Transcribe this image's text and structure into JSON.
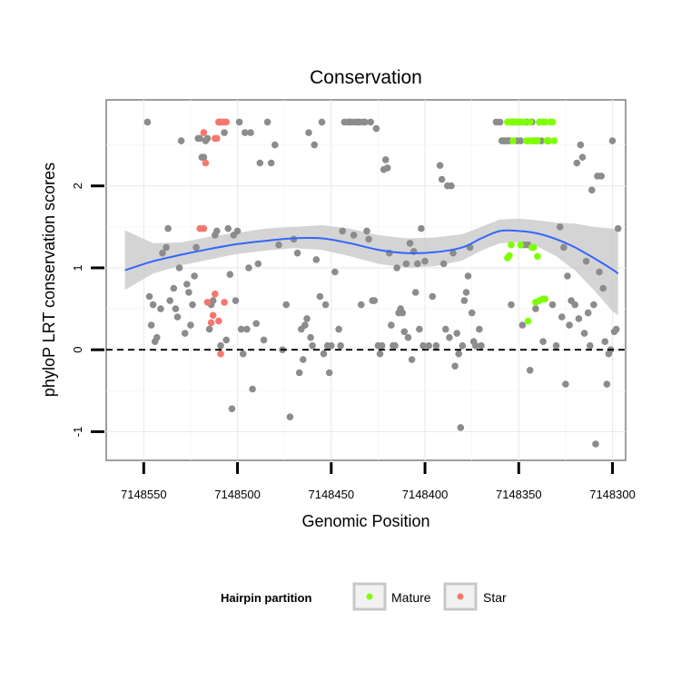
{
  "chart_data": {
    "type": "scatter",
    "title": "Conservation",
    "xlabel": "Genomic Position",
    "ylabel": "phyloP LRT conservation scores",
    "x_reversed": true,
    "xlim": [
      7148570,
      7148293
    ],
    "ylim": [
      -1.35,
      3.05
    ],
    "x_ticks": [
      7148550,
      7148500,
      7148450,
      7148400,
      7148350,
      7148300
    ],
    "x_tick_labels": [
      "7148550",
      "7148500",
      "7148450",
      "7148400",
      "7148350",
      "7148300"
    ],
    "y_ticks": [
      -1,
      0,
      1,
      2
    ],
    "y_tick_labels": [
      "-1",
      "0",
      "1",
      "2"
    ],
    "reference_line": {
      "y": 0,
      "style": "dashed"
    },
    "legend": {
      "title": "Hairpin partition",
      "position": "bottom",
      "entries": [
        {
          "label": "Mature",
          "color": "#7FFF00"
        },
        {
          "label": "Star",
          "color": "#F8766D"
        }
      ]
    },
    "colors": {
      "other": "#8c8c8c",
      "mature": "#7FFF00",
      "star": "#F8766D",
      "smooth": "#3366FF",
      "ribbon": "#cccccc"
    },
    "series": [
      {
        "name": "Other",
        "points": [
          [
            7148548,
            2.78
          ],
          [
            7148545,
            0.55
          ],
          [
            7148547,
            0.65
          ],
          [
            7148546,
            0.3
          ],
          [
            7148544,
            0.1
          ],
          [
            7148543,
            0.15
          ],
          [
            7148541,
            0.5
          ],
          [
            7148540,
            1.18
          ],
          [
            7148538,
            1.25
          ],
          [
            7148537,
            1.48
          ],
          [
            7148536,
            0.6
          ],
          [
            7148534,
            0.75
          ],
          [
            7148533,
            0.5
          ],
          [
            7148532,
            0.4
          ],
          [
            7148531,
            1.0
          ],
          [
            7148530,
            2.55
          ],
          [
            7148528,
            0.2
          ],
          [
            7148527,
            0.8
          ],
          [
            7148526,
            0.7
          ],
          [
            7148525,
            0.3
          ],
          [
            7148524,
            0.55
          ],
          [
            7148523,
            0.9
          ],
          [
            7148522,
            1.25
          ],
          [
            7148521,
            2.58
          ],
          [
            7148520,
            2.58
          ],
          [
            7148519,
            2.35
          ],
          [
            7148518,
            2.35
          ],
          [
            7148517,
            2.55
          ],
          [
            7148516,
            2.58
          ],
          [
            7148515,
            0.25
          ],
          [
            7148514,
            0.55
          ],
          [
            7148513,
            0.6
          ],
          [
            7148512,
            1.4
          ],
          [
            7148511,
            1.45
          ],
          [
            7148510,
            2.78
          ],
          [
            7148509,
            0.05
          ],
          [
            7148507,
            2.65
          ],
          [
            7148506,
            0.12
          ],
          [
            7148505,
            1.48
          ],
          [
            7148504,
            0.92
          ],
          [
            7148503,
            -0.72
          ],
          [
            7148502,
            1.4
          ],
          [
            7148501,
            0.6
          ],
          [
            7148500,
            1.45
          ],
          [
            7148499,
            2.78
          ],
          [
            7148498,
            0.25
          ],
          [
            7148497,
            -0.05
          ],
          [
            7148496,
            2.65
          ],
          [
            7148495,
            0.25
          ],
          [
            7148494,
            1.0
          ],
          [
            7148493,
            2.65
          ],
          [
            7148492,
            -0.48
          ],
          [
            7148490,
            0.32
          ],
          [
            7148489,
            1.05
          ],
          [
            7148488,
            2.28
          ],
          [
            7148486,
            0.12
          ],
          [
            7148484,
            2.78
          ],
          [
            7148482,
            2.28
          ],
          [
            7148480,
            2.5
          ],
          [
            7148478,
            1.28
          ],
          [
            7148476,
            0.0
          ],
          [
            7148474,
            0.55
          ],
          [
            7148472,
            -0.82
          ],
          [
            7148470,
            1.35
          ],
          [
            7148468,
            1.18
          ],
          [
            7148467,
            -0.28
          ],
          [
            7148466,
            0.25
          ],
          [
            7148465,
            -0.12
          ],
          [
            7148464,
            0.3
          ],
          [
            7148463,
            0.38
          ],
          [
            7148462,
            2.65
          ],
          [
            7148461,
            0.15
          ],
          [
            7148460,
            0.05
          ],
          [
            7148459,
            2.5
          ],
          [
            7148458,
            1.1
          ],
          [
            7148456,
            0.65
          ],
          [
            7148455,
            2.78
          ],
          [
            7148454,
            -0.05
          ],
          [
            7148453,
            0.55
          ],
          [
            7148452,
            0.05
          ],
          [
            7148451,
            -0.28
          ],
          [
            7148450,
            0.05
          ],
          [
            7148448,
            0.95
          ],
          [
            7148446,
            0.25
          ],
          [
            7148445,
            0.05
          ],
          [
            7148444,
            1.45
          ],
          [
            7148443,
            2.78
          ],
          [
            7148441,
            2.78
          ],
          [
            7148440,
            2.78
          ],
          [
            7148439,
            2.78
          ],
          [
            7148438,
            1.4
          ],
          [
            7148437,
            2.78
          ],
          [
            7148436,
            2.78
          ],
          [
            7148435,
            2.78
          ],
          [
            7148434,
            0.55
          ],
          [
            7148433,
            2.78
          ],
          [
            7148432,
            2.78
          ],
          [
            7148431,
            1.45
          ],
          [
            7148430,
            1.35
          ],
          [
            7148429,
            2.78
          ],
          [
            7148428,
            0.6
          ],
          [
            7148427,
            0.6
          ],
          [
            7148426,
            2.7
          ],
          [
            7148425,
            0.05
          ],
          [
            7148424,
            -0.05
          ],
          [
            7148423,
            0.05
          ],
          [
            7148422,
            2.2
          ],
          [
            7148421,
            2.32
          ],
          [
            7148420,
            2.22
          ],
          [
            7148419,
            1.18
          ],
          [
            7148418,
            0.3
          ],
          [
            7148417,
            0.05
          ],
          [
            7148416,
            0.05
          ],
          [
            7148415,
            1.0
          ],
          [
            7148414,
            0.45
          ],
          [
            7148413,
            0.5
          ],
          [
            7148412,
            0.45
          ],
          [
            7148411,
            0.22
          ],
          [
            7148410,
            1.05
          ],
          [
            7148409,
            0.15
          ],
          [
            7148408,
            1.3
          ],
          [
            7148407,
            -0.12
          ],
          [
            7148406,
            1.2
          ],
          [
            7148405,
            0.7
          ],
          [
            7148404,
            1.05
          ],
          [
            7148403,
            0.25
          ],
          [
            7148402,
            1.48
          ],
          [
            7148401,
            0.05
          ],
          [
            7148400,
            1.08
          ],
          [
            7148398,
            0.05
          ],
          [
            7148396,
            0.65
          ],
          [
            7148394,
            0.05
          ],
          [
            7148392,
            2.25
          ],
          [
            7148391,
            2.08
          ],
          [
            7148390,
            1.05
          ],
          [
            7148389,
            0.25
          ],
          [
            7148388,
            2.0
          ],
          [
            7148387,
            0.15
          ],
          [
            7148386,
            2.0
          ],
          [
            7148385,
            1.18
          ],
          [
            7148384,
            -0.2
          ],
          [
            7148383,
            0.2
          ],
          [
            7148382,
            -0.05
          ],
          [
            7148381,
            -0.95
          ],
          [
            7148380,
            0.05
          ],
          [
            7148379,
            0.6
          ],
          [
            7148378,
            0.7
          ],
          [
            7148377,
            0.9
          ],
          [
            7148376,
            1.25
          ],
          [
            7148375,
            0.45
          ],
          [
            7148374,
            0.1
          ],
          [
            7148373,
            0.05
          ],
          [
            7148371,
            0.25
          ],
          [
            7148370,
            0.05
          ],
          [
            7148362,
            2.78
          ],
          [
            7148360,
            2.78
          ],
          [
            7148359,
            2.55
          ],
          [
            7148358,
            2.55
          ],
          [
            7148357,
            2.55
          ],
          [
            7148356,
            2.55
          ],
          [
            7148355,
            2.55
          ],
          [
            7148354,
            0.55
          ],
          [
            7148353,
            2.78
          ],
          [
            7148352,
            2.78
          ],
          [
            7148351,
            2.55
          ],
          [
            7148350,
            2.78
          ],
          [
            7148349,
            2.55
          ],
          [
            7148348,
            0.3
          ],
          [
            7148347,
            1.28
          ],
          [
            7148346,
            2.78
          ],
          [
            7148345,
            1.28
          ],
          [
            7148344,
            -0.25
          ],
          [
            7148343,
            2.78
          ],
          [
            7148342,
            2.55
          ],
          [
            7148341,
            0.5
          ],
          [
            7148340,
            2.55
          ],
          [
            7148339,
            2.78
          ],
          [
            7148338,
            2.55
          ],
          [
            7148337,
            0.1
          ],
          [
            7148336,
            2.78
          ],
          [
            7148335,
            2.55
          ],
          [
            7148334,
            2.55
          ],
          [
            7148333,
            2.78
          ],
          [
            7148332,
            0.55
          ],
          [
            7148330,
            0.05
          ],
          [
            7148328,
            1.5
          ],
          [
            7148327,
            0.4
          ],
          [
            7148326,
            1.25
          ],
          [
            7148325,
            -0.42
          ],
          [
            7148324,
            0.9
          ],
          [
            7148323,
            0.3
          ],
          [
            7148322,
            0.6
          ],
          [
            7148320,
            0.55
          ],
          [
            7148319,
            2.28
          ],
          [
            7148318,
            0.38
          ],
          [
            7148317,
            2.5
          ],
          [
            7148316,
            2.35
          ],
          [
            7148315,
            0.2
          ],
          [
            7148314,
            1.08
          ],
          [
            7148313,
            0.45
          ],
          [
            7148312,
            0.05
          ],
          [
            7148311,
            1.95
          ],
          [
            7148310,
            0.55
          ],
          [
            7148309,
            -1.15
          ],
          [
            7148308,
            2.12
          ],
          [
            7148307,
            0.95
          ],
          [
            7148306,
            2.12
          ],
          [
            7148305,
            0.75
          ],
          [
            7148304,
            0.1
          ],
          [
            7148303,
            -0.42
          ],
          [
            7148302,
            -0.05
          ],
          [
            7148301,
            0.0
          ],
          [
            7148300,
            2.55
          ],
          [
            7148299,
            0.22
          ],
          [
            7148298,
            0.25
          ],
          [
            7148297,
            1.48
          ]
        ]
      },
      {
        "name": "Mature",
        "points": [
          [
            7148356,
            2.78
          ],
          [
            7148355,
            2.78
          ],
          [
            7148354,
            2.78
          ],
          [
            7148353,
            2.55
          ],
          [
            7148352,
            2.78
          ],
          [
            7148351,
            2.78
          ],
          [
            7148350,
            2.78
          ],
          [
            7148349,
            2.78
          ],
          [
            7148348,
            2.78
          ],
          [
            7148347,
            2.78
          ],
          [
            7148346,
            2.55
          ],
          [
            7148345,
            2.55
          ],
          [
            7148344,
            2.78
          ],
          [
            7148343,
            2.55
          ],
          [
            7148342,
            2.55
          ],
          [
            7148341,
            2.55
          ],
          [
            7148340,
            2.55
          ],
          [
            7148339,
            2.78
          ],
          [
            7148338,
            2.78
          ],
          [
            7148337,
            2.78
          ],
          [
            7148336,
            2.78
          ],
          [
            7148335,
            2.55
          ],
          [
            7148334,
            2.55
          ],
          [
            7148333,
            2.78
          ],
          [
            7148332,
            2.78
          ],
          [
            7148331,
            2.55
          ],
          [
            7148356,
            1.12
          ],
          [
            7148355,
            1.15
          ],
          [
            7148354,
            1.28
          ],
          [
            7148349,
            1.28
          ],
          [
            7148345,
            0.35
          ],
          [
            7148343,
            1.25
          ],
          [
            7148342,
            1.25
          ],
          [
            7148341,
            0.58
          ],
          [
            7148340,
            1.14
          ],
          [
            7148339,
            0.6
          ],
          [
            7148337,
            0.62
          ],
          [
            7148336,
            0.62
          ]
        ]
      },
      {
        "name": "Star",
        "points": [
          [
            7148518,
            2.65
          ],
          [
            7148517,
            2.28
          ],
          [
            7148512,
            2.58
          ],
          [
            7148511,
            2.58
          ],
          [
            7148510,
            2.78
          ],
          [
            7148509,
            2.78
          ],
          [
            7148508,
            2.78
          ],
          [
            7148507,
            2.78
          ],
          [
            7148506,
            2.78
          ],
          [
            7148520,
            1.48
          ],
          [
            7148518,
            1.48
          ],
          [
            7148516,
            0.58
          ],
          [
            7148514,
            0.33
          ],
          [
            7148513,
            0.42
          ],
          [
            7148512,
            0.68
          ],
          [
            7148510,
            0.35
          ],
          [
            7148509,
            -0.05
          ],
          [
            7148507,
            0.58
          ]
        ]
      }
    ],
    "smooth": {
      "method": "loess",
      "x": [
        7148560,
        7148545,
        7148530,
        7148515,
        7148500,
        7148485,
        7148470,
        7148455,
        7148440,
        7148425,
        7148410,
        7148395,
        7148380,
        7148370,
        7148360,
        7148350,
        7148340,
        7148330,
        7148320,
        7148310,
        7148300,
        7148297
      ],
      "y": [
        0.97,
        1.08,
        1.16,
        1.23,
        1.29,
        1.33,
        1.36,
        1.36,
        1.3,
        1.22,
        1.18,
        1.19,
        1.25,
        1.36,
        1.45,
        1.45,
        1.42,
        1.35,
        1.25,
        1.12,
        0.98,
        0.93
      ],
      "lower": [
        0.73,
        0.93,
        1.03,
        1.1,
        1.17,
        1.21,
        1.24,
        1.22,
        1.14,
        1.05,
        1.0,
        1.02,
        1.09,
        1.21,
        1.3,
        1.31,
        1.26,
        1.14,
        0.97,
        0.73,
        0.47,
        0.42
      ],
      "upper": [
        1.46,
        1.3,
        1.31,
        1.38,
        1.43,
        1.48,
        1.5,
        1.52,
        1.48,
        1.4,
        1.36,
        1.37,
        1.41,
        1.5,
        1.59,
        1.6,
        1.58,
        1.55,
        1.54,
        1.5,
        1.48,
        1.45
      ]
    }
  }
}
